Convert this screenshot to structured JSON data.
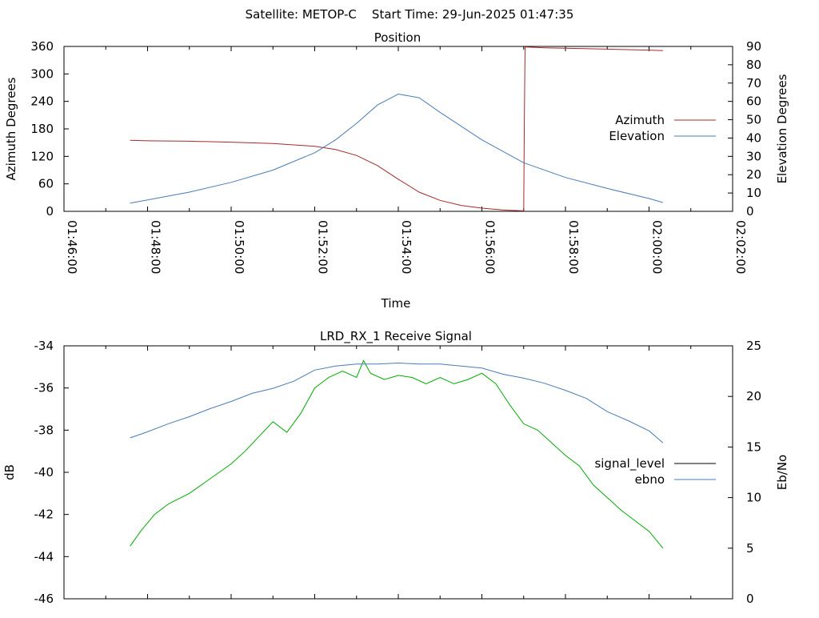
{
  "header": {
    "title": "Satellite: METOP-C    Start Time: 29-Jun-2025 01:47:35"
  },
  "chart_data": [
    {
      "type": "line",
      "title": "Position",
      "xlabel": "Time",
      "ylabel": "Azimuth Degrees",
      "y2label": "Elevation Degrees",
      "x_ticks": [
        "01:46:00",
        "01:48:00",
        "01:50:00",
        "01:52:00",
        "01:54:00",
        "01:56:00",
        "01:58:00",
        "02:00:00",
        "02:02:00"
      ],
      "xlim": [
        "01:46:00",
        "02:02:00"
      ],
      "ylim": [
        0,
        360
      ],
      "y_ticks": [
        0,
        60,
        120,
        180,
        240,
        300,
        360
      ],
      "y2lim": [
        0,
        90
      ],
      "y2_ticks": [
        0,
        10,
        20,
        30,
        40,
        50,
        60,
        70,
        80,
        90
      ],
      "legend_position": "right",
      "series": [
        {
          "name": "Azimuth",
          "axis": "left",
          "color": "#a52a2a",
          "x": [
            "01:47:35",
            "01:48:00",
            "01:49:00",
            "01:50:00",
            "01:51:00",
            "01:52:00",
            "01:52:30",
            "01:53:00",
            "01:53:30",
            "01:54:00",
            "01:54:30",
            "01:55:00",
            "01:55:30",
            "01:56:00",
            "01:56:30",
            "01:57:00",
            "01:57:01",
            "01:57:02",
            "01:57:30",
            "01:58:00",
            "01:59:00",
            "02:00:00",
            "02:00:20"
          ],
          "values": [
            155,
            154,
            153,
            151,
            148,
            142,
            135,
            122,
            100,
            70,
            42,
            24,
            13,
            7,
            3,
            1,
            200,
            359,
            357,
            356,
            354,
            352,
            351
          ]
        },
        {
          "name": "Elevation",
          "axis": "right",
          "color": "#4a7bb7",
          "x": [
            "01:47:35",
            "01:48:00",
            "01:49:00",
            "01:50:00",
            "01:51:00",
            "01:52:00",
            "01:52:30",
            "01:53:00",
            "01:53:30",
            "01:54:00",
            "01:54:30",
            "01:55:00",
            "01:56:00",
            "01:57:00",
            "01:58:00",
            "01:59:00",
            "02:00:00",
            "02:00:20"
          ],
          "values": [
            4.5,
            6.2,
            10.5,
            15.8,
            22.5,
            32,
            39,
            48,
            58,
            64,
            62,
            54,
            39,
            26.5,
            18.5,
            12.5,
            7,
            4.8
          ]
        }
      ]
    },
    {
      "type": "line",
      "title": "LRD_RX_1 Receive Signal",
      "xlabel": "",
      "ylabel": "dB",
      "y2label": "Eb/No",
      "xlim": [
        "01:46:00",
        "02:02:00"
      ],
      "ylim": [
        -46,
        -34
      ],
      "y_ticks": [
        -46,
        -44,
        -42,
        -40,
        -38,
        -36,
        -34
      ],
      "y2lim": [
        0,
        25
      ],
      "y2_ticks": [
        0,
        5,
        10,
        15,
        20,
        25
      ],
      "legend_position": "right",
      "series": [
        {
          "name": "signal_level",
          "axis": "left",
          "color": "#00aa00",
          "legend_color": "#000000",
          "x": [
            "01:47:35",
            "01:47:50",
            "01:48:10",
            "01:48:30",
            "01:49:00",
            "01:49:30",
            "01:50:00",
            "01:50:20",
            "01:50:40",
            "01:51:00",
            "01:51:20",
            "01:51:40",
            "01:52:00",
            "01:52:20",
            "01:52:40",
            "01:53:00",
            "01:53:10",
            "01:53:20",
            "01:53:40",
            "01:54:00",
            "01:54:20",
            "01:54:40",
            "01:55:00",
            "01:55:20",
            "01:55:40",
            "01:56:00",
            "01:56:20",
            "01:56:40",
            "01:57:00",
            "01:57:20",
            "01:57:40",
            "01:58:00",
            "01:58:20",
            "01:58:40",
            "01:59:00",
            "01:59:20",
            "01:59:40",
            "02:00:00",
            "02:00:20"
          ],
          "values": [
            -43.5,
            -42.8,
            -42.0,
            -41.5,
            -41.0,
            -40.3,
            -39.6,
            -39.0,
            -38.3,
            -37.6,
            -38.1,
            -37.2,
            -36.0,
            -35.5,
            -35.2,
            -35.5,
            -34.7,
            -35.3,
            -35.6,
            -35.4,
            -35.5,
            -35.8,
            -35.5,
            -35.8,
            -35.6,
            -35.3,
            -35.8,
            -36.8,
            -37.7,
            -38.0,
            -38.6,
            -39.2,
            -39.7,
            -40.6,
            -41.2,
            -41.8,
            -42.3,
            -42.8,
            -43.6
          ]
        },
        {
          "name": "ebno",
          "axis": "right",
          "color": "#4a7bb7",
          "x": [
            "01:47:35",
            "01:48:00",
            "01:48:30",
            "01:49:00",
            "01:49:30",
            "01:50:00",
            "01:50:30",
            "01:51:00",
            "01:51:30",
            "01:52:00",
            "01:52:30",
            "01:53:00",
            "01:53:30",
            "01:54:00",
            "01:54:30",
            "01:55:00",
            "01:55:30",
            "01:56:00",
            "01:56:30",
            "01:57:00",
            "01:57:30",
            "01:58:00",
            "01:58:30",
            "01:59:00",
            "01:59:30",
            "02:00:00",
            "02:00:20"
          ],
          "values": [
            15.9,
            16.5,
            17.3,
            18.0,
            18.8,
            19.5,
            20.3,
            20.8,
            21.5,
            22.6,
            23.0,
            23.2,
            23.2,
            23.3,
            23.2,
            23.2,
            23.0,
            22.8,
            22.2,
            21.8,
            21.3,
            20.6,
            19.8,
            18.5,
            17.6,
            16.6,
            15.4
          ]
        }
      ]
    }
  ]
}
